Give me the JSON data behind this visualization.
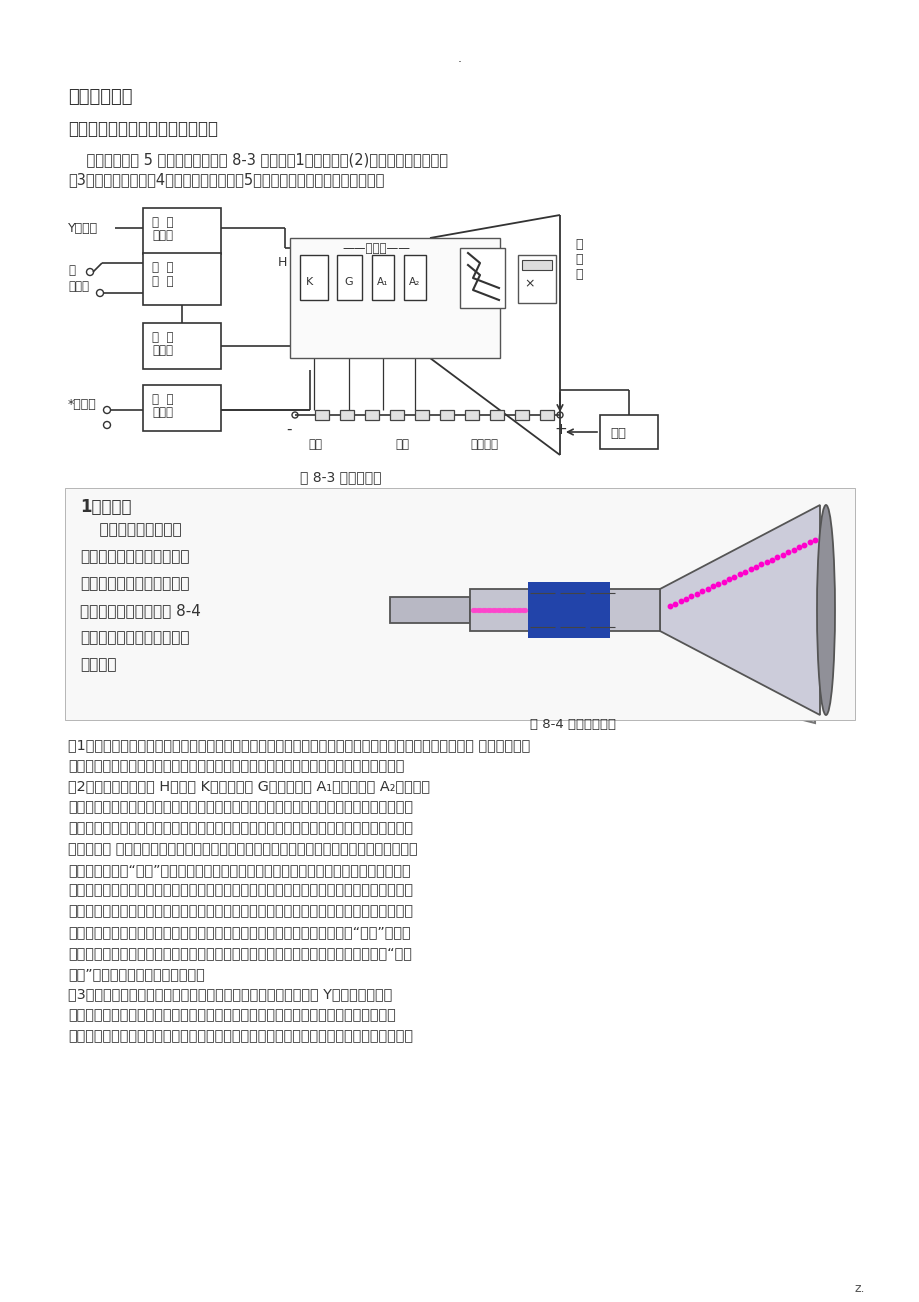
{
  "bg_color": "#ffffff",
  "text_color": "#333333",
  "dot_text": ".",
  "page_num": "z.",
  "title_section": "《实验原理》",
  "section1_title": "一、示波器的构造及简单工作原理",
  "para1": "    示波器一般由 5 个局部组成，如图 8-3 所示：（1）示波管；(2)信号放大器和衰减器",
  "para2": "（3）扫描发生器；（4）触发同步电路；（5）电源。下面分别加以简单说明。",
  "fig1_caption": "图 8-3 电路构造图",
  "section2_title": "1、示波管",
  "fig2_caption": "图 8-4 示波管示意图",
  "crt_lines": [
    "    示波管主要包括电子",
    "枪、偏转系统和荧光屏三局",
    "部，全都密封在玻璃外壳，",
    "里面抽成高真空。如图 8-4",
    "所示，下面分别说明各局部",
    "的作用。"
  ],
  "body_lines": [
    "（1）荧光屏：它是示波器的显示局部，当加速聚焦后的电子打到荧光上时，屏上所涂的荧光物质就会发光 从而显示出电",
    "子束的位置。当电子停顿作用后，荧光剂的发光需经一定时间才会停顿，称为余辉效应。",
    "（2）电子枪：由灯丝 H、阴极 K、控制栅极 G、第一阳极 A₁、第二阳极 A₂五局部组",
    "成。灯丝通电后加热阴极。阴极是一个外表涂有氧化物的金属筒，被加热后发射电子。控制",
    "栅极是一个顶端有小孔的圆筒，套在阴极外面，它的电位比阴极低，对阴极发射出来的电子",
    "起控制作用 只有初速度较大的电子才能穿过栅极顶端的小孔然后在阳极加速下奔向荧光屏。",
    "示波器面板上的“亮度”调整就是通过调节电位以控制射向荧光屏的电子流密度，从而改变",
    "了屏上的光斌亮度。阳极电位比阴极电位高很多，电子被它们之间的电场加速形成射线。当",
    "控制栅极、第一阳极、第二阳极之间的电位调节适宜时，电子枪的电场对电子射线有聚用，",
    "所以第一阳极也称聚焦阳极。第二阳极电位更高，又称加速阳极。面板上的“聚焦”调节，",
    "就是调第一阳极电位，使荧光屏上的光斌成为明亮、清晰的小圆点。有的示波器还有“辅助",
    "聚焦”，实际是调节第二阳极电位。",
    "（3）偏转系统：它由两对相互垂直的偏板组成，一对垂直偏转板 Y，一对水平偏转",
    "板。在偏板上加以适当电压，电子束通过时，其运动方向发生偏转，从而使电子束在荧",
    "光屏上的光斌位置也发生改变。容易证明，光点在荧光屏上偏移的距离与偏转板上所加的电"
  ]
}
